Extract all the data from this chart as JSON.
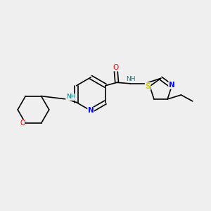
{
  "bg_color": "#efefef",
  "bond_color": "#000000",
  "atom_colors": {
    "O": "#ff0000",
    "N": "#0000ff",
    "S": "#cccc00",
    "NH": "#008080",
    "C": "#000000"
  },
  "figsize": [
    3.0,
    3.0
  ],
  "dpi": 100
}
